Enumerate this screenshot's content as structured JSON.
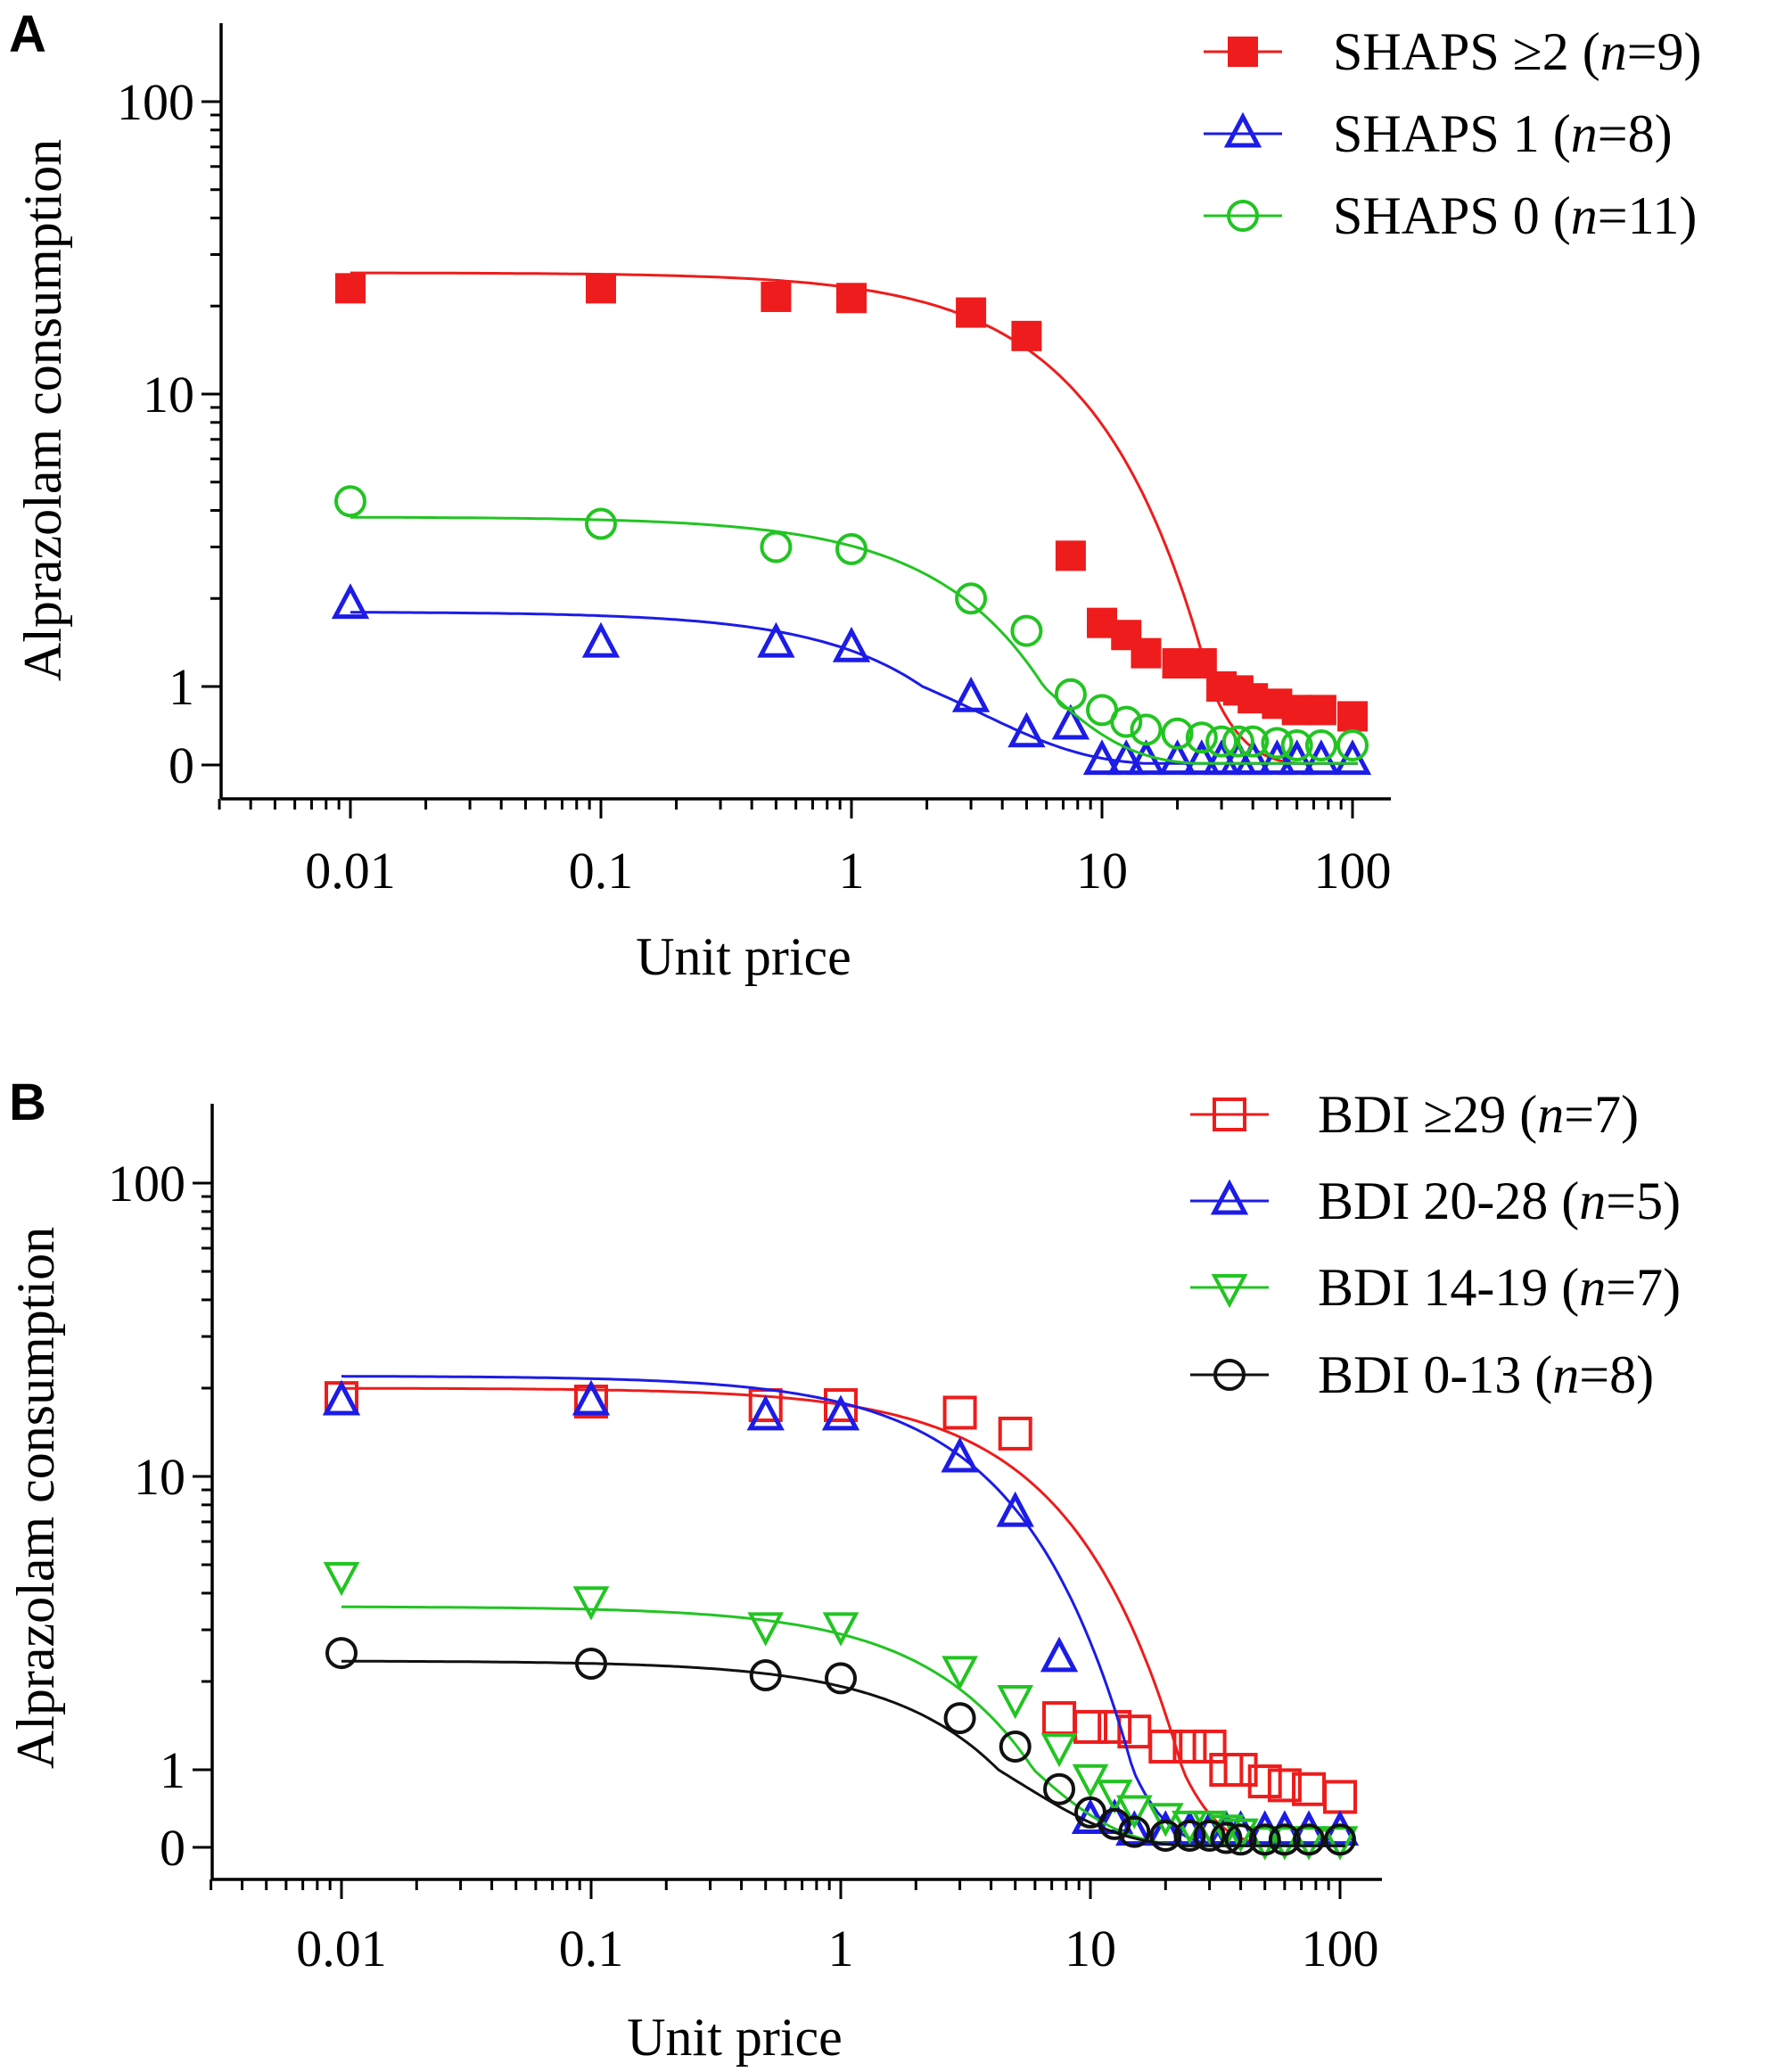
{
  "chart_data": [
    {
      "panel_label": "A",
      "type": "scatter",
      "xlabel": "Unit price",
      "ylabel": "Alprazolam consumption",
      "xscale": "log",
      "yscale": "log (0 shown at bottom)",
      "xlim": [
        0.003,
        130
      ],
      "xticks": [
        "0.01",
        "0.1",
        "1",
        "10",
        "100"
      ],
      "yticks": [
        "100",
        "10",
        "1",
        "0"
      ],
      "legend_position": "top-right",
      "series": [
        {
          "name": "SHAPS ≥2 (n=9)",
          "label_main": "SHAPS ≥2 (",
          "label_n": "n",
          "label_tail": "=9)",
          "color": "#ee1c1c",
          "marker": "square-filled",
          "fit": {
            "Q0": 26.0,
            "alpha": 0.0046
          },
          "x": [
            0.01,
            0.1,
            0.5,
            1,
            3,
            5,
            7.5,
            10,
            12.5,
            15,
            20,
            25,
            30,
            35,
            40,
            50,
            60,
            75,
            100
          ],
          "y": [
            23,
            23,
            21.5,
            21.3,
            19,
            15.8,
            2.8,
            1.65,
            1.5,
            1.3,
            1.2,
            1.2,
            1.0,
            0.95,
            0.85,
            0.78,
            0.7,
            0.7,
            0.62
          ]
        },
        {
          "name": "SHAPS 1 (n=8)",
          "label_main": "SHAPS 1 (",
          "label_n": "n",
          "label_tail": "=8)",
          "color": "#1c1ce6",
          "marker": "triangle-up-open",
          "fit": {
            "Q0": 1.8,
            "alpha": 0.17
          },
          "x": [
            0.01,
            0.1,
            0.5,
            1,
            3,
            5,
            7.5,
            10,
            12.5,
            15,
            20,
            25,
            30,
            35,
            40,
            50,
            60,
            75,
            100
          ],
          "y": [
            1.9,
            1.4,
            1.4,
            1.35,
            0.85,
            0.4,
            0.5,
            0.05,
            0.05,
            0.05,
            0.05,
            0.05,
            0.05,
            0.05,
            0.05,
            0.05,
            0.05,
            0.05,
            0.05
          ]
        },
        {
          "name": "SHAPS 0 (n=11)",
          "label_main": "SHAPS 0 (",
          "label_n": "n",
          "label_tail": "=11)",
          "color": "#22c422",
          "marker": "circle-open",
          "fit": {
            "Q0": 3.8,
            "alpha": 0.06
          },
          "x": [
            0.01,
            0.1,
            0.5,
            1,
            3,
            5,
            7.5,
            10,
            12.5,
            15,
            20,
            25,
            30,
            35,
            40,
            50,
            60,
            75,
            100
          ],
          "y": [
            4.3,
            3.6,
            3.0,
            2.95,
            2.0,
            1.55,
            0.9,
            0.7,
            0.55,
            0.45,
            0.4,
            0.35,
            0.3,
            0.3,
            0.3,
            0.28,
            0.25,
            0.25,
            0.25
          ]
        }
      ]
    },
    {
      "panel_label": "B",
      "type": "scatter",
      "xlabel": "Unit price",
      "ylabel": "Alprazolam consumption",
      "xscale": "log",
      "yscale": "log (0 shown at bottom)",
      "xlim": [
        0.003,
        130
      ],
      "xticks": [
        "0.01",
        "0.1",
        "1",
        "10",
        "100"
      ],
      "yticks": [
        "100",
        "10",
        "1",
        "0"
      ],
      "legend_position": "top-right",
      "series": [
        {
          "name": "BDI ≥29 (n=7)",
          "label_main": "BDI ≥29 (",
          "label_n": "n",
          "label_tail": "=7)",
          "color": "#ee1c1c",
          "marker": "square-open",
          "fit": {
            "Q0": 20.0,
            "alpha": 0.0064
          },
          "x": [
            0.01,
            0.1,
            0.5,
            1,
            3,
            5,
            7.5,
            10,
            12.5,
            15,
            20,
            25,
            30,
            35,
            40,
            50,
            60,
            75,
            100
          ],
          "y": [
            18.5,
            18,
            17.5,
            17.5,
            16.5,
            14,
            1.5,
            1.4,
            1.4,
            1.35,
            1.2,
            1.2,
            1.2,
            1.0,
            1.0,
            0.85,
            0.8,
            0.75,
            0.65
          ]
        },
        {
          "name": "BDI 20-28 (n=5)",
          "label_main": "BDI 20-28 (",
          "label_n": "n",
          "label_tail": "=5)",
          "color": "#1c1ce6",
          "marker": "triangle-up-open",
          "fit": {
            "Q0": 22.0,
            "alpha": 0.0095
          },
          "x": [
            0.01,
            0.1,
            0.5,
            1,
            3,
            5,
            7.5,
            10,
            12.5,
            15,
            20,
            25,
            30,
            35,
            40,
            50,
            60,
            75,
            100
          ],
          "y": [
            18,
            18,
            16,
            16,
            11.5,
            7.5,
            2.4,
            0.35,
            0.35,
            0.2,
            0.2,
            0.2,
            0.2,
            0.2,
            0.2,
            0.2,
            0.2,
            0.2,
            0.2
          ]
        },
        {
          "name": "BDI 14-19 (n=7)",
          "label_main": "BDI 14-19 (",
          "label_n": "n",
          "label_tail": "=7)",
          "color": "#22c422",
          "marker": "triangle-down-open",
          "fit": {
            "Q0": 3.6,
            "alpha": 0.06
          },
          "x": [
            0.01,
            0.1,
            0.5,
            1,
            3,
            5,
            7.5,
            10,
            12.5,
            15,
            20,
            25,
            30,
            35,
            40,
            50,
            60,
            75,
            100
          ],
          "y": [
            4.6,
            3.8,
            3.1,
            3.1,
            2.2,
            1.75,
            1.2,
            0.9,
            0.7,
            0.5,
            0.4,
            0.3,
            0.3,
            0.25,
            0.2,
            0.1,
            0.1,
            0.1,
            0.1
          ]
        },
        {
          "name": "BDI 0-13 (n=8)",
          "label_main": "BDI   0-13 (",
          "label_n": "n",
          "label_tail": "=8)",
          "color": "#111111",
          "marker": "circle-open",
          "fit": {
            "Q0": 2.35,
            "alpha": 0.085
          },
          "x": [
            0.01,
            0.1,
            0.5,
            1,
            3,
            5,
            7.5,
            10,
            12.5,
            15,
            20,
            25,
            30,
            35,
            40,
            50,
            60,
            75,
            100
          ],
          "y": [
            2.5,
            2.3,
            2.1,
            2.05,
            1.5,
            1.2,
            0.75,
            0.45,
            0.3,
            0.2,
            0.15,
            0.15,
            0.15,
            0.12,
            0.1,
            0.1,
            0.1,
            0.1,
            0.1
          ]
        }
      ]
    }
  ]
}
